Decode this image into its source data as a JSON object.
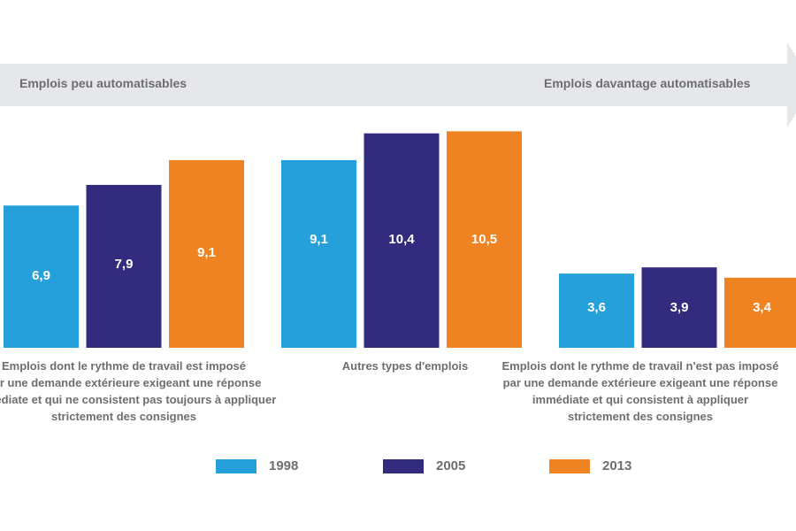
{
  "header": {
    "left_label": "Emplois peu automatisables",
    "right_label": "Emplois davantage automatisables"
  },
  "chart_data": {
    "type": "bar",
    "categories": [
      [
        "Emplois dont le rythme de travail est imposé",
        "par une demande extérieure exigeant une réponse",
        "immédiate et qui ne consistent pas toujours à appliquer",
        "strictement des consignes"
      ],
      [
        "Autres types d'emplois"
      ],
      [
        "Emplois dont le rythme de travail n'est pas imposé",
        "par une demande extérieure exigeant une réponse",
        "immédiate et qui consistent à appliquer",
        "strictement des consignes"
      ]
    ],
    "series": [
      {
        "name": "1998",
        "color": "#25a0da",
        "values": [
          6.9,
          9.1,
          3.6
        ],
        "labels": [
          "6,9",
          "9,1",
          "3,6"
        ]
      },
      {
        "name": "2005",
        "color": "#322b7e",
        "values": [
          7.9,
          10.4,
          3.9
        ],
        "labels": [
          "7,9",
          "10,4",
          "3,9"
        ]
      },
      {
        "name": "2013",
        "color": "#ef8322",
        "values": [
          9.1,
          10.5,
          3.4
        ],
        "labels": [
          "9,1",
          "10,5",
          "3,4"
        ]
      }
    ],
    "ylim": [
      0,
      11
    ],
    "grid": false,
    "legend": "bottom"
  }
}
